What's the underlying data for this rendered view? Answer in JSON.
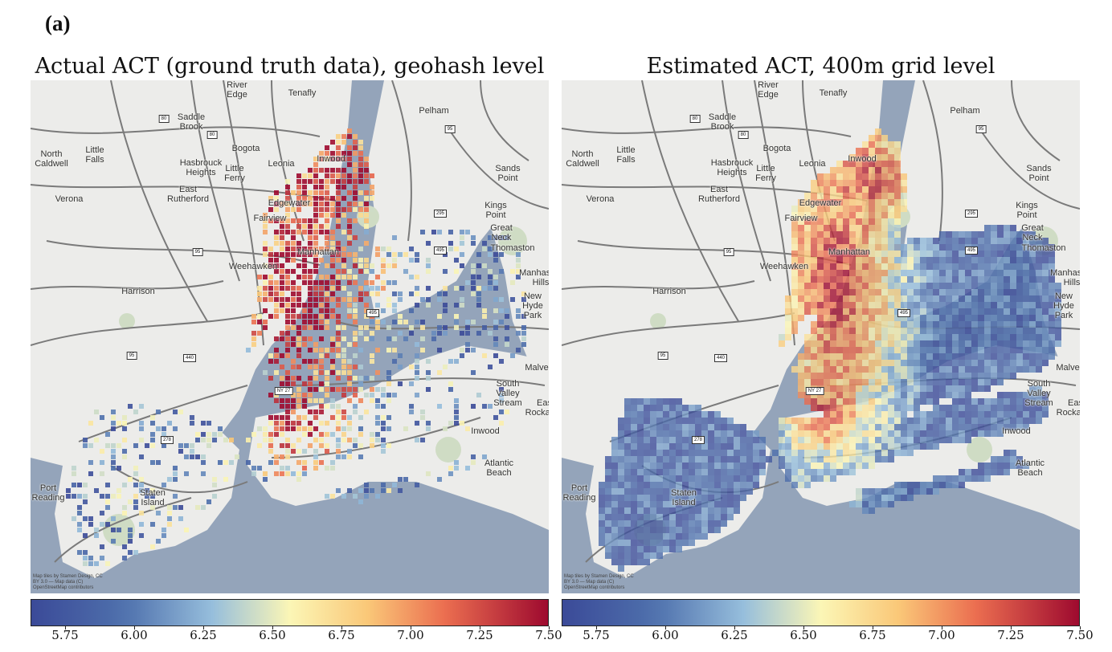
{
  "figure": {
    "panel_label": "(a)",
    "left": {
      "title": "Actual ACT (ground truth data), geohash level",
      "attribution": "Map tiles by Stamen Design, CC BY 3.0 — Map data (C) OpenStreetMap contributors"
    },
    "right": {
      "title": "Estimated ACT, 400m grid level",
      "attribution": "Map tiles by Stamen Design, CC BY 3.0 — Map data (C) OpenStreetMap contributors"
    }
  },
  "places": [
    {
      "id": "river-edge",
      "text": "River\nEdge"
    },
    {
      "id": "tenafly",
      "text": "Tenafly"
    },
    {
      "id": "pelham",
      "text": "Pelham"
    },
    {
      "id": "saddle-brook",
      "text": "Saddle\nBrook"
    },
    {
      "id": "north-caldwell",
      "text": "North\nCaldwell"
    },
    {
      "id": "little-falls",
      "text": "Little\nFalls"
    },
    {
      "id": "bogota",
      "text": "Bogota"
    },
    {
      "id": "hasbrouck-heights",
      "text": "Hasbrouck\nHeights"
    },
    {
      "id": "little-ferry",
      "text": "Little\nFerry"
    },
    {
      "id": "leonia",
      "text": "Leonia"
    },
    {
      "id": "inwood-n",
      "text": "Inwood"
    },
    {
      "id": "sands-point",
      "text": "Sands\nPoint"
    },
    {
      "id": "verona",
      "text": "Verona"
    },
    {
      "id": "east-rutherford",
      "text": "East\nRutherford"
    },
    {
      "id": "edgewater",
      "text": "Edgewater"
    },
    {
      "id": "fairview",
      "text": "Fairview"
    },
    {
      "id": "kings-point",
      "text": "Kings\nPoint"
    },
    {
      "id": "great-neck",
      "text": "Great\nNeck"
    },
    {
      "id": "thomaston",
      "text": "Thomaston"
    },
    {
      "id": "weehawken",
      "text": "Weehawken"
    },
    {
      "id": "manhattan",
      "text": "Manhattan"
    },
    {
      "id": "manhasset-hills",
      "text": "Manhasset\nHills"
    },
    {
      "id": "harrison",
      "text": "Harrison"
    },
    {
      "id": "new-hyde-park",
      "text": "New\nHyde\nPark"
    },
    {
      "id": "malverne",
      "text": "Malverne"
    },
    {
      "id": "south-valley-stream",
      "text": "South\nValley\nStream"
    },
    {
      "id": "east-rockaway",
      "text": "East\nRockaway"
    },
    {
      "id": "inwood-s",
      "text": "Inwood"
    },
    {
      "id": "atlantic-beach",
      "text": "Atlantic\nBeach"
    },
    {
      "id": "port-reading",
      "text": "Port\nReading"
    },
    {
      "id": "staten-island",
      "text": "Staten\nIsland"
    }
  ],
  "shields": [
    "80",
    "80",
    "95",
    "95",
    "95",
    "295",
    "495",
    "495",
    "278",
    "440",
    "NY 27",
    "95"
  ],
  "chart_data": [
    {
      "type": "heatmap",
      "title": "Actual ACT (ground truth data), geohash level",
      "colormap": "Spectral_r",
      "vmin": 5.625,
      "vmax": 7.5,
      "colorbar_ticks": [
        "5.75",
        "6.00",
        "6.25",
        "6.50",
        "6.75",
        "7.00",
        "7.25",
        "7.50"
      ]
    },
    {
      "type": "heatmap",
      "title": "Estimated ACT, 400m grid level",
      "colormap": "Spectral_r",
      "vmin": 5.625,
      "vmax": 7.5,
      "colorbar_ticks": [
        "5.75",
        "6.00",
        "6.25",
        "6.50",
        "6.75",
        "7.00",
        "7.25",
        "7.50"
      ]
    }
  ],
  "colors": {
    "water": "#94a4ba",
    "land": "#ececea",
    "cmap_low": "#3b4a98",
    "cmap_mid": "#fbf6b6",
    "cmap_high": "#9e0a2f"
  }
}
